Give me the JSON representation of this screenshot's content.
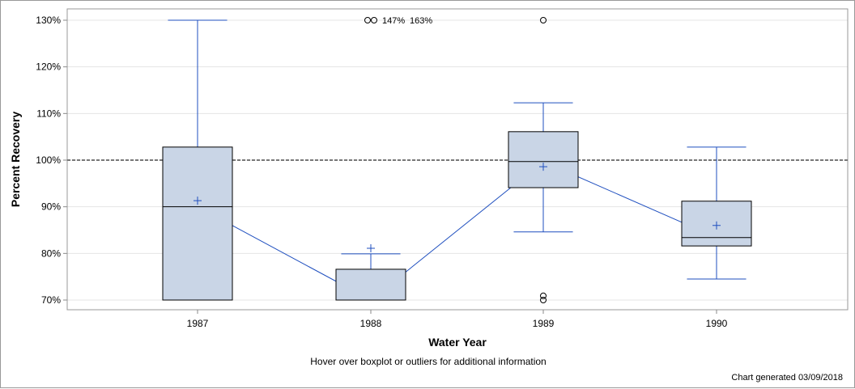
{
  "chart_data": {
    "type": "boxplot",
    "xlabel": "Water Year",
    "ylabel": "Percent Recovery",
    "ylim": [
      68,
      132
    ],
    "yticks": [
      "70%",
      "80%",
      "90%",
      "100%",
      "110%",
      "120%",
      "130%"
    ],
    "ytick_values": [
      70,
      80,
      90,
      100,
      110,
      120,
      130
    ],
    "reference_line": 100,
    "grid": true,
    "categories": [
      "1987",
      "1988",
      "1989",
      "1990"
    ],
    "boxes": [
      {
        "category": "1987",
        "min": 70,
        "q1": 70,
        "median": 90,
        "q3": 102.8,
        "max": 130,
        "mean": 91.3,
        "outliers": []
      },
      {
        "category": "1988",
        "min": 70,
        "q1": 70,
        "median": 70,
        "q3": 76.6,
        "max": 79.9,
        "mean": 81.1,
        "outliers": [
          130,
          130
        ],
        "outlier_labels": [
          "147%",
          "163%"
        ]
      },
      {
        "category": "1989",
        "min": 84.6,
        "q1": 94.1,
        "median": 99.7,
        "q3": 106.1,
        "max": 112.3,
        "mean": 98.6,
        "outliers": [
          130,
          70.9,
          70
        ]
      },
      {
        "category": "1990",
        "min": 74.5,
        "q1": 81.6,
        "median": 83.4,
        "q3": 91.2,
        "max": 102.8,
        "mean": 86.0,
        "outliers": []
      }
    ],
    "colors": {
      "box_fill": "#c9d5e6",
      "whisker": "#1f4fbf",
      "line": "#1f4fbf",
      "reference": "#777777"
    }
  },
  "footer": {
    "hover_note": "Hover over boxplot or outliers for additional information",
    "generated": "Chart generated 03/09/2018"
  }
}
